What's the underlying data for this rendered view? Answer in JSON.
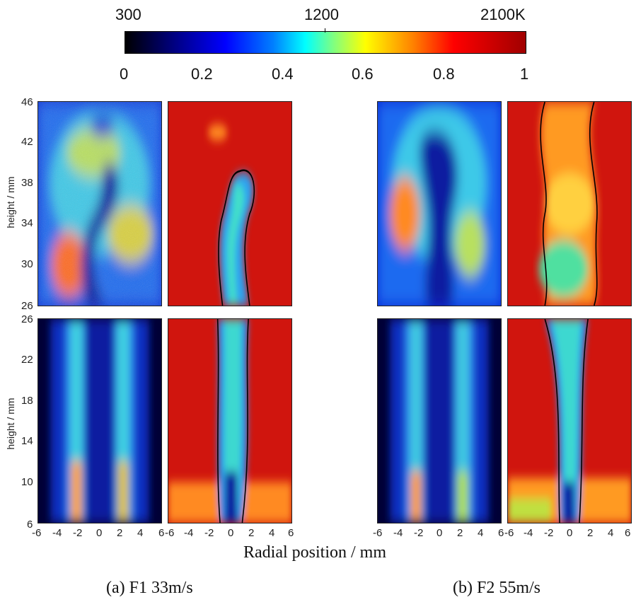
{
  "colorbar": {
    "temp_min": "300",
    "temp_mid": "1200",
    "temp_max": "2100K",
    "scale_ticks": [
      "0",
      "0.2",
      "0.4",
      "0.6",
      "0.8",
      "1"
    ],
    "colormap": "jet"
  },
  "axes": {
    "ylabel": "height / mm",
    "xlabel": "Radial position / mm",
    "x_ticks": [
      "-6",
      "-4",
      "-2",
      "0",
      "2",
      "4",
      "6"
    ],
    "y_ticks_upper": [
      "46",
      "42",
      "38",
      "34",
      "30",
      "26"
    ],
    "y_ticks_lower": [
      "26",
      "22",
      "18",
      "14",
      "10",
      "6"
    ]
  },
  "captions": {
    "left": "(a) F1 33m/s",
    "right": "(b) F2 55m/s"
  },
  "chart_data": {
    "type": "heatmap",
    "x_range": [
      -6,
      6
    ],
    "y_range_upper": [
      26,
      46
    ],
    "y_range_lower": [
      6,
      26
    ],
    "color_range": [
      0,
      1
    ],
    "temperature_range_K": [
      300,
      2100
    ]
  }
}
